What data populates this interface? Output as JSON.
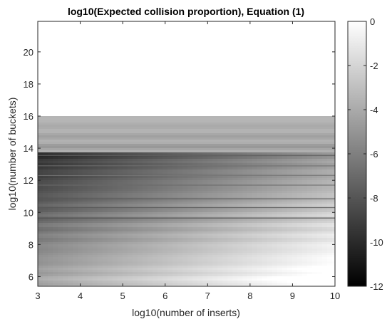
{
  "chart_data": {
    "type": "heatmap",
    "title": "log10(Expected collision proportion), Equation (1)",
    "xlabel": "log10(number of inserts)",
    "ylabel": "log10(number of buckets)",
    "xlim": [
      3,
      10
    ],
    "ylim": [
      5.4,
      21.9
    ],
    "x_ticks": [
      3,
      4,
      5,
      6,
      7,
      8,
      9,
      10
    ],
    "y_ticks": [
      6,
      8,
      10,
      12,
      14,
      16,
      18,
      20
    ],
    "colorbar": {
      "colormap": "gray",
      "range": [
        -12,
        0
      ],
      "ticks": [
        0,
        -2,
        -4,
        -6,
        -8,
        -10,
        -12
      ]
    },
    "data_region": {
      "y_top": 16.0,
      "description_note": "values approx. log10(n/m) clipped to [-12,0]; blank above y=16"
    },
    "dark_lines": [
      {
        "y": 13.55,
        "value": -7.5
      },
      {
        "y": 12.9,
        "value": -6.5
      },
      {
        "y": 12.3,
        "value": -6.5
      },
      {
        "y": 11.7,
        "value": -7.0
      },
      {
        "y": 10.85,
        "value": -8.0
      },
      {
        "y": 10.3,
        "value": -8.0
      },
      {
        "y": 9.65,
        "value": -8.5
      }
    ],
    "grid": false
  }
}
